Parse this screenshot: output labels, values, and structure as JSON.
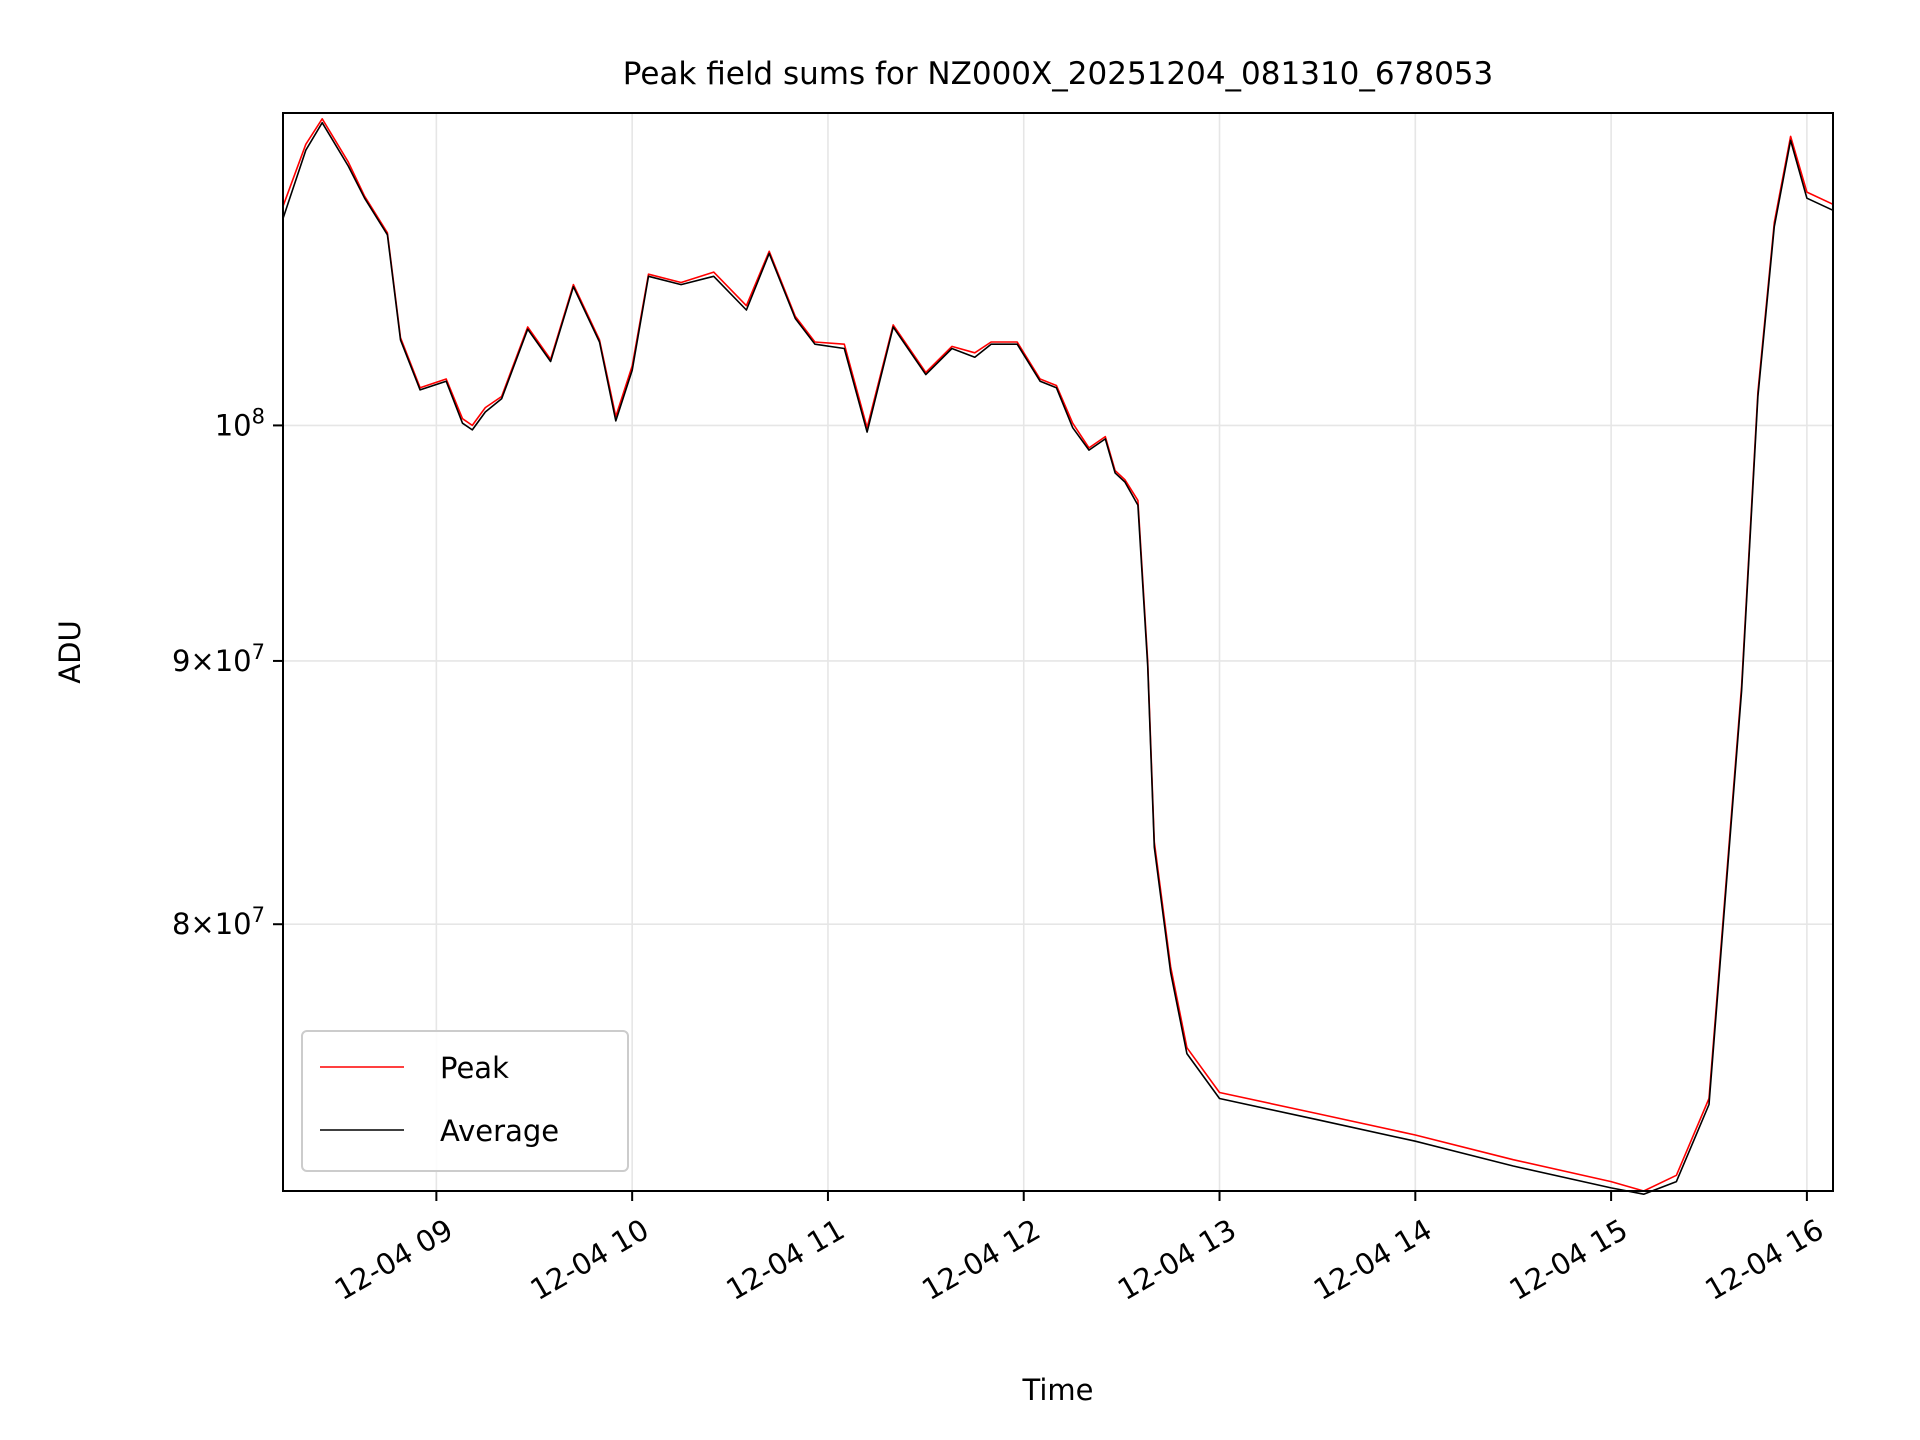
{
  "chart_data": {
    "type": "line",
    "title": "Peak field sums for NZ000X_20251204_081310_678053",
    "xlabel": "Time",
    "ylabel": "ADU",
    "y_scale": "log",
    "xlim": [
      "2025-12-04 08:13",
      "2025-12-04 16:08"
    ],
    "ylim": [
      71000000,
      115000000
    ],
    "grid": true,
    "legend_position": "lower-left",
    "x_ticks": [
      {
        "value": "2025-12-04 09:00",
        "label": "12-04 09"
      },
      {
        "value": "2025-12-04 10:00",
        "label": "12-04 10"
      },
      {
        "value": "2025-12-04 11:00",
        "label": "12-04 11"
      },
      {
        "value": "2025-12-04 12:00",
        "label": "12-04 12"
      },
      {
        "value": "2025-12-04 13:00",
        "label": "12-04 13"
      },
      {
        "value": "2025-12-04 14:00",
        "label": "12-04 14"
      },
      {
        "value": "2025-12-04 15:00",
        "label": "12-04 15"
      },
      {
        "value": "2025-12-04 16:00",
        "label": "12-04 16"
      }
    ],
    "y_ticks": [
      {
        "value": 80000000,
        "mantissa": "8",
        "exponent": "7"
      },
      {
        "value": 90000000,
        "mantissa": "9",
        "exponent": "7"
      },
      {
        "value": 100000000,
        "mantissa": "",
        "exponent": "8"
      }
    ],
    "x": [
      "2025-12-04 08:13",
      "2025-12-04 08:20",
      "2025-12-04 08:25",
      "2025-12-04 08:33",
      "2025-12-04 08:38",
      "2025-12-04 08:45",
      "2025-12-04 08:49",
      "2025-12-04 08:55",
      "2025-12-04 09:03",
      "2025-12-04 09:08",
      "2025-12-04 09:11",
      "2025-12-04 09:15",
      "2025-12-04 09:20",
      "2025-12-04 09:28",
      "2025-12-04 09:35",
      "2025-12-04 09:42",
      "2025-12-04 09:50",
      "2025-12-04 09:55",
      "2025-12-04 10:00",
      "2025-12-04 10:05",
      "2025-12-04 10:15",
      "2025-12-04 10:25",
      "2025-12-04 10:35",
      "2025-12-04 10:42",
      "2025-12-04 10:50",
      "2025-12-04 10:56",
      "2025-12-04 11:05",
      "2025-12-04 11:12",
      "2025-12-04 11:20",
      "2025-12-04 11:30",
      "2025-12-04 11:38",
      "2025-12-04 11:45",
      "2025-12-04 11:50",
      "2025-12-04 11:58",
      "2025-12-04 12:05",
      "2025-12-04 12:10",
      "2025-12-04 12:15",
      "2025-12-04 12:20",
      "2025-12-04 12:25",
      "2025-12-04 12:28",
      "2025-12-04 12:31",
      "2025-12-04 12:35",
      "2025-12-04 12:38",
      "2025-12-04 12:40",
      "2025-12-04 12:45",
      "2025-12-04 12:50",
      "2025-12-04 13:00",
      "2025-12-04 13:30",
      "2025-12-04 14:00",
      "2025-12-04 14:30",
      "2025-12-04 15:00",
      "2025-12-04 15:10",
      "2025-12-04 15:20",
      "2025-12-04 15:30",
      "2025-12-04 15:40",
      "2025-12-04 15:45",
      "2025-12-04 15:50",
      "2025-12-04 15:55",
      "2025-12-04 16:00",
      "2025-12-04 16:08"
    ],
    "series": [
      {
        "name": "Peak",
        "color": "#ff0000",
        "values": [
          110300000,
          113400000,
          114700000,
          112500000,
          110800000,
          109000000,
          104000000,
          101700000,
          102100000,
          100300000,
          100000000,
          100800000,
          101300000,
          104500000,
          103000000,
          106500000,
          103900000,
          100400000,
          102700000,
          107000000,
          106600000,
          107100000,
          105500000,
          108100000,
          105000000,
          103800000,
          103700000,
          99900000,
          104600000,
          102400000,
          103600000,
          103300000,
          103800000,
          103800000,
          102100000,
          101800000,
          100100000,
          99000000,
          99500000,
          98000000,
          97600000,
          96700000,
          90000000,
          83000000,
          78500000,
          75700000,
          74200000,
          73500000,
          72800000,
          72000000,
          71300000,
          71000000,
          71500000,
          74000000,
          89000000,
          101500000,
          109500000,
          113800000,
          111000000,
          110400000
        ]
      },
      {
        "name": "Average",
        "color": "#000000",
        "values": [
          109700000,
          113100000,
          114500000,
          112300000,
          110700000,
          108900000,
          103900000,
          101600000,
          102000000,
          100100000,
          99800000,
          100600000,
          101200000,
          104400000,
          102900000,
          106400000,
          103800000,
          100200000,
          102500000,
          106900000,
          106500000,
          106900000,
          105300000,
          108000000,
          104900000,
          103700000,
          103500000,
          99700000,
          104500000,
          102300000,
          103500000,
          103100000,
          103700000,
          103700000,
          102000000,
          101700000,
          99900000,
          98900000,
          99400000,
          97900000,
          97500000,
          96500000,
          89800000,
          82800000,
          78300000,
          75500000,
          74000000,
          73300000,
          72600000,
          71800000,
          71100000,
          70900000,
          71300000,
          73800000,
          88800000,
          101300000,
          109300000,
          113600000,
          110700000,
          110100000
        ]
      }
    ]
  }
}
